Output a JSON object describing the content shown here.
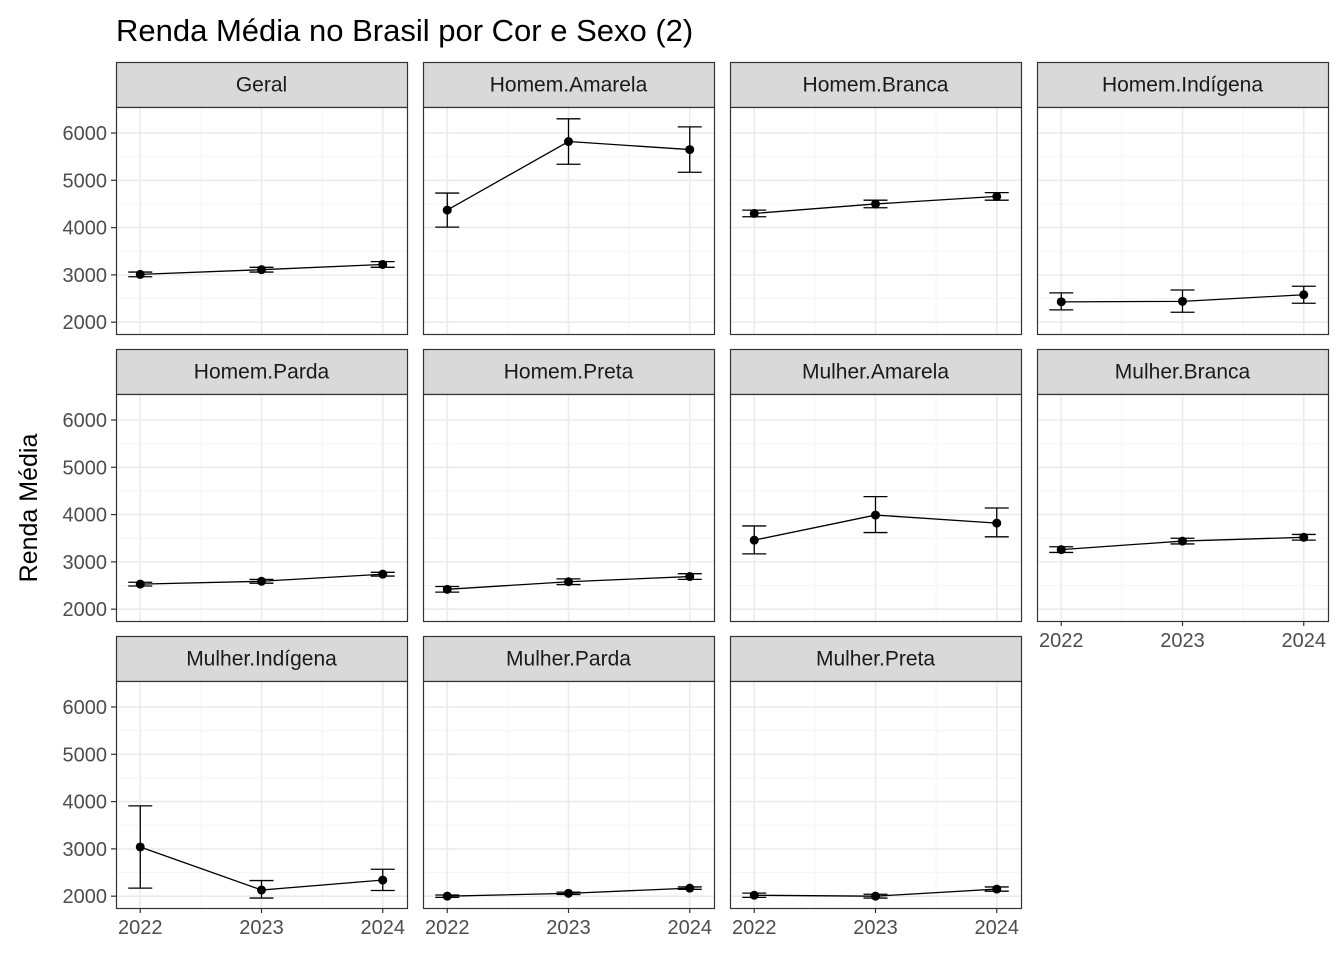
{
  "chart_data": {
    "type": "line",
    "title": "Renda Média no Brasil por Cor e Sexo (2)",
    "xlabel": "",
    "ylabel": "Renda Média",
    "x": [
      2022,
      2023,
      2024
    ],
    "x_ticks": [
      "2022",
      "2023",
      "2024"
    ],
    "y_ticks": [
      "2000",
      "3000",
      "4000",
      "5000",
      "6000"
    ],
    "ylim": [
      1750,
      6550
    ],
    "xlim": [
      2021.8,
      2024.2
    ],
    "grid": true,
    "error_bars": true,
    "facet_layout": {
      "cols": 4,
      "rows": 3
    },
    "colors": {
      "line": "#000000",
      "point": "#000000",
      "strip_bg": "#d9d9d9",
      "panel_border": "#333333",
      "grid_major": "#ebebeb",
      "grid_minor": "#f5f5f5"
    },
    "series": [
      {
        "name": "Geral",
        "values": [
          3010,
          3110,
          3220
        ],
        "lower": [
          2960,
          3060,
          3160
        ],
        "upper": [
          3060,
          3160,
          3280
        ]
      },
      {
        "name": "Homem.Amarela",
        "values": [
          4370,
          5820,
          5650
        ],
        "lower": [
          4010,
          5340,
          5170
        ],
        "upper": [
          4730,
          6300,
          6130
        ]
      },
      {
        "name": "Homem.Branca",
        "values": [
          4300,
          4500,
          4660
        ],
        "lower": [
          4230,
          4420,
          4580
        ],
        "upper": [
          4370,
          4580,
          4740
        ]
      },
      {
        "name": "Homem.Indígena",
        "values": [
          2430,
          2440,
          2580
        ],
        "lower": [
          2260,
          2210,
          2400
        ],
        "upper": [
          2620,
          2680,
          2760
        ]
      },
      {
        "name": "Homem.Parda",
        "values": [
          2530,
          2590,
          2740
        ],
        "lower": [
          2490,
          2550,
          2700
        ],
        "upper": [
          2570,
          2630,
          2780
        ]
      },
      {
        "name": "Homem.Preta",
        "values": [
          2420,
          2580,
          2690
        ],
        "lower": [
          2360,
          2520,
          2630
        ],
        "upper": [
          2480,
          2640,
          2750
        ]
      },
      {
        "name": "Mulher.Amarela",
        "values": [
          3460,
          3990,
          3820
        ],
        "lower": [
          3170,
          3620,
          3530
        ],
        "upper": [
          3760,
          4380,
          4140
        ]
      },
      {
        "name": "Mulher.Branca",
        "values": [
          3260,
          3440,
          3520
        ],
        "lower": [
          3200,
          3380,
          3460
        ],
        "upper": [
          3320,
          3500,
          3580
        ]
      },
      {
        "name": "Mulher.Indígena",
        "values": [
          3040,
          2130,
          2340
        ],
        "lower": [
          2170,
          1960,
          2120
        ],
        "upper": [
          3910,
          2330,
          2570
        ]
      },
      {
        "name": "Mulher.Parda",
        "values": [
          2000,
          2060,
          2170
        ],
        "lower": [
          1975,
          2035,
          2145
        ],
        "upper": [
          2025,
          2085,
          2195
        ]
      },
      {
        "name": "Mulher.Preta",
        "values": [
          2020,
          2000,
          2150
        ],
        "lower": [
          1975,
          1960,
          2105
        ],
        "upper": [
          2065,
          2040,
          2195
        ]
      }
    ]
  }
}
